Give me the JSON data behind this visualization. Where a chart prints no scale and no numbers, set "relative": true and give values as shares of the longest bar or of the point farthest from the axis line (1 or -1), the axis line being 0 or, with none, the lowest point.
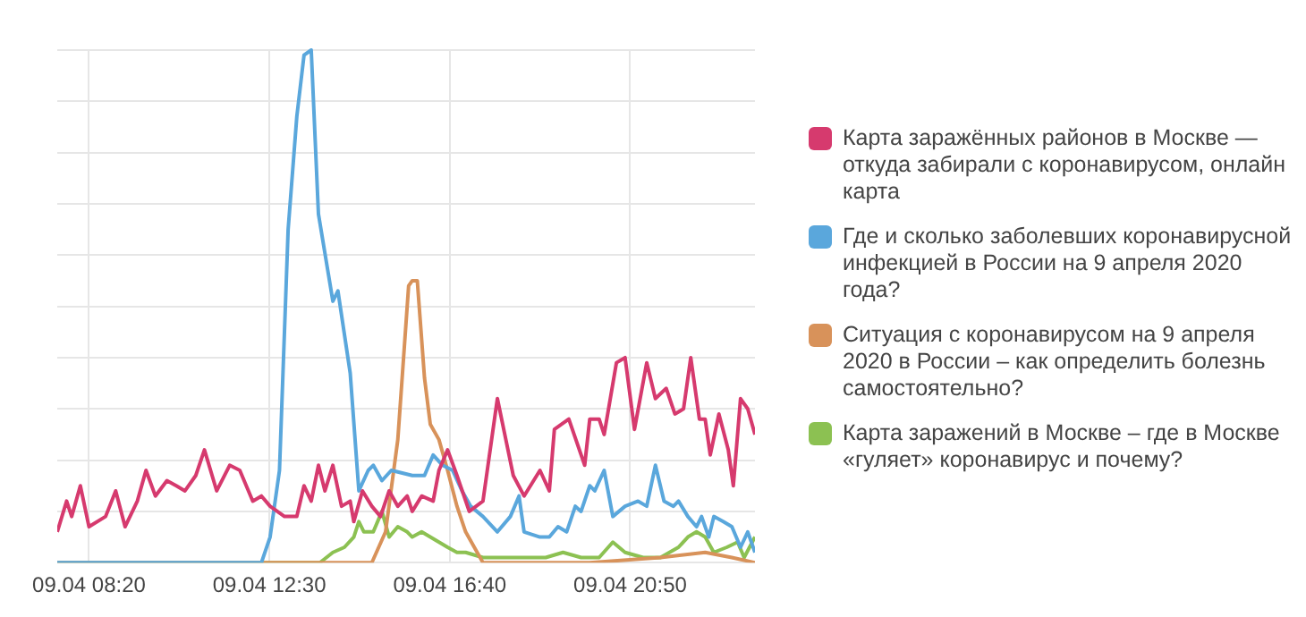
{
  "chart_data": {
    "type": "line",
    "relative": true,
    "grid": true,
    "legend": "right",
    "marker": "none",
    "xlim": [
      "2020-04-09T07:36",
      "2020-04-09T23:43"
    ],
    "xticks": [
      {
        "value": "2020-04-09T08:20",
        "label": "09.04 08:20"
      },
      {
        "value": "2020-04-09T12:30",
        "label": "09.04 12:30"
      },
      {
        "value": "2020-04-09T16:40",
        "label": "09.04 16:40"
      },
      {
        "value": "2020-04-09T20:50",
        "label": "09.04 20:50"
      }
    ],
    "series": [
      {
        "name": "Карта заражённых районов в Москве — откуда забирали с коронавирусом, онлайн карта",
        "color": "#d63a6e",
        "x": [
          "2020-04-09T07:36",
          "2020-04-09T07:49",
          "2020-04-09T07:56",
          "2020-04-09T08:08",
          "2020-04-09T08:20",
          "2020-04-09T08:43",
          "2020-04-09T08:57",
          "2020-04-09T09:10",
          "2020-04-09T09:27",
          "2020-04-09T09:39",
          "2020-04-09T09:52",
          "2020-04-09T10:08",
          "2020-04-09T10:21",
          "2020-04-09T10:33",
          "2020-04-09T10:48",
          "2020-04-09T11:00",
          "2020-04-09T11:17",
          "2020-04-09T11:35",
          "2020-04-09T11:49",
          "2020-04-09T12:07",
          "2020-04-09T12:19",
          "2020-04-09T12:31",
          "2020-04-09T12:51",
          "2020-04-09T13:08",
          "2020-04-09T13:18",
          "2020-04-09T13:28",
          "2020-04-09T13:38",
          "2020-04-09T13:47",
          "2020-04-09T13:58",
          "2020-04-09T14:10",
          "2020-04-09T14:22",
          "2020-04-09T14:27",
          "2020-04-09T14:39",
          "2020-04-09T14:52",
          "2020-04-09T15:04",
          "2020-04-09T15:16",
          "2020-04-09T15:28",
          "2020-04-09T15:41",
          "2020-04-09T15:48",
          "2020-04-09T16:01",
          "2020-04-09T16:17",
          "2020-04-09T16:25",
          "2020-04-09T16:37",
          "2020-04-09T16:50",
          "2020-04-09T17:07",
          "2020-04-09T17:26",
          "2020-04-09T17:46",
          "2020-04-09T18:08",
          "2020-04-09T18:23",
          "2020-04-09T18:45",
          "2020-04-09T18:58",
          "2020-04-09T19:05",
          "2020-04-09T19:25",
          "2020-04-09T19:47",
          "2020-04-09T19:54",
          "2020-04-09T20:07",
          "2020-04-09T20:14",
          "2020-04-09T20:31",
          "2020-04-09T20:43",
          "2020-04-09T20:56",
          "2020-04-09T21:13",
          "2020-04-09T21:25",
          "2020-04-09T21:40",
          "2020-04-09T21:52",
          "2020-04-09T22:04",
          "2020-04-09T22:14",
          "2020-04-09T22:26",
          "2020-04-09T22:34",
          "2020-04-09T22:41",
          "2020-04-09T22:53",
          "2020-04-09T23:06",
          "2020-04-09T23:13",
          "2020-04-09T23:23",
          "2020-04-09T23:33",
          "2020-04-09T23:43"
        ],
        "values": [
          0.06,
          0.12,
          0.09,
          0.15,
          0.07,
          0.09,
          0.14,
          0.07,
          0.12,
          0.18,
          0.13,
          0.16,
          0.15,
          0.14,
          0.17,
          0.22,
          0.14,
          0.19,
          0.18,
          0.12,
          0.13,
          0.11,
          0.09,
          0.09,
          0.15,
          0.12,
          0.19,
          0.14,
          0.19,
          0.11,
          0.12,
          0.08,
          0.14,
          0.11,
          0.09,
          0.14,
          0.11,
          0.13,
          0.1,
          0.13,
          0.12,
          0.18,
          0.22,
          0.17,
          0.1,
          0.12,
          0.32,
          0.17,
          0.13,
          0.18,
          0.14,
          0.26,
          0.28,
          0.19,
          0.28,
          0.28,
          0.25,
          0.39,
          0.4,
          0.26,
          0.39,
          0.32,
          0.34,
          0.29,
          0.3,
          0.4,
          0.28,
          0.28,
          0.21,
          0.29,
          0.22,
          0.15,
          0.32,
          0.3,
          0.25
        ]
      },
      {
        "name": "Где и сколько заболевших коронавирусной инфекцией в России на 9 апреля 2020 года?",
        "color": "#5aa7dc",
        "x": [
          "2020-04-09T07:36",
          "2020-04-09T12:19",
          "2020-04-09T12:31",
          "2020-04-09T12:44",
          "2020-04-09T12:56",
          "2020-04-09T13:08",
          "2020-04-09T13:18",
          "2020-04-09T13:28",
          "2020-04-09T13:38",
          "2020-04-09T13:58",
          "2020-04-09T14:05",
          "2020-04-09T14:22",
          "2020-04-09T14:34",
          "2020-04-09T14:47",
          "2020-04-09T14:54",
          "2020-04-09T15:06",
          "2020-04-09T15:19",
          "2020-04-09T15:48",
          "2020-04-09T16:05",
          "2020-04-09T16:17",
          "2020-04-09T16:30",
          "2020-04-09T16:44",
          "2020-04-09T16:57",
          "2020-04-09T17:09",
          "2020-04-09T17:26",
          "2020-04-09T17:46",
          "2020-04-09T18:04",
          "2020-04-09T18:16",
          "2020-04-09T18:23",
          "2020-04-09T18:45",
          "2020-04-09T18:58",
          "2020-04-09T19:10",
          "2020-04-09T19:22",
          "2020-04-09T19:34",
          "2020-04-09T19:42",
          "2020-04-09T19:54",
          "2020-04-09T20:01",
          "2020-04-09T20:14",
          "2020-04-09T20:26",
          "2020-04-09T20:43",
          "2020-04-09T21:01",
          "2020-04-09T21:13",
          "2020-04-09T21:25",
          "2020-04-09T21:37",
          "2020-04-09T21:50",
          "2020-04-09T21:57",
          "2020-04-09T22:10",
          "2020-04-09T22:22",
          "2020-04-09T22:29",
          "2020-04-09T22:39",
          "2020-04-09T22:46",
          "2020-04-09T22:59",
          "2020-04-09T23:11",
          "2020-04-09T23:23",
          "2020-04-09T23:33",
          "2020-04-09T23:43"
        ],
        "values": [
          0,
          0,
          0.05,
          0.18,
          0.65,
          0.87,
          0.99,
          1,
          0.68,
          0.51,
          0.53,
          0.37,
          0.14,
          0.18,
          0.19,
          0.16,
          0.18,
          0.17,
          0.17,
          0.21,
          0.19,
          0.18,
          0.14,
          0.11,
          0.09,
          0.06,
          0.09,
          0.13,
          0.06,
          0.05,
          0.05,
          0.07,
          0.06,
          0.11,
          0.1,
          0.15,
          0.14,
          0.18,
          0.09,
          0.11,
          0.12,
          0.11,
          0.19,
          0.12,
          0.11,
          0.12,
          0.09,
          0.07,
          0.09,
          0.05,
          0.09,
          0.08,
          0.07,
          0.03,
          0.06,
          0.02
        ]
      },
      {
        "name": "Ситуация с коронавирусом на 9 апреля 2020 в России – как определить болезнь самостоятельно?",
        "color": "#d8925a",
        "x": [
          "2020-04-09T07:36",
          "2020-04-09T14:52",
          "2020-04-09T15:11",
          "2020-04-09T15:28",
          "2020-04-09T15:43",
          "2020-04-09T15:48",
          "2020-04-09T15:55",
          "2020-04-09T16:05",
          "2020-04-09T16:13",
          "2020-04-09T16:25",
          "2020-04-09T16:37",
          "2020-04-09T16:50",
          "2020-04-09T17:02",
          "2020-04-09T17:14",
          "2020-04-09T17:26",
          "2020-04-09T19:54",
          "2020-04-09T21:32",
          "2020-04-09T22:34",
          "2020-04-09T23:11",
          "2020-04-09T23:43"
        ],
        "values": [
          0,
          0,
          0.06,
          0.24,
          0.54,
          0.55,
          0.55,
          0.36,
          0.27,
          0.24,
          0.18,
          0.11,
          0.06,
          0.03,
          0,
          0,
          0.01,
          0.02,
          0.01,
          0
        ]
      },
      {
        "name": "Карта заражений в Москве – где в Москве «гуляет» коронавирус и почему?",
        "color": "#8cc152",
        "x": [
          "2020-04-09T07:36",
          "2020-04-09T13:40",
          "2020-04-09T13:58",
          "2020-04-09T14:14",
          "2020-04-09T14:27",
          "2020-04-09T14:34",
          "2020-04-09T14:41",
          "2020-04-09T14:54",
          "2020-04-09T15:06",
          "2020-04-09T15:16",
          "2020-04-09T15:28",
          "2020-04-09T15:41",
          "2020-04-09T15:48",
          "2020-04-09T16:01",
          "2020-04-09T16:13",
          "2020-04-09T16:25",
          "2020-04-09T16:37",
          "2020-04-09T16:50",
          "2020-04-09T17:02",
          "2020-04-09T17:26",
          "2020-04-09T17:51",
          "2020-04-09T18:16",
          "2020-04-09T18:53",
          "2020-04-09T19:17",
          "2020-04-09T19:42",
          "2020-04-09T20:07",
          "2020-04-09T20:26",
          "2020-04-09T20:43",
          "2020-04-09T21:08",
          "2020-04-09T21:32",
          "2020-04-09T21:57",
          "2020-04-09T22:10",
          "2020-04-09T22:22",
          "2020-04-09T22:34",
          "2020-04-09T22:46",
          "2020-04-09T23:04",
          "2020-04-09T23:19",
          "2020-04-09T23:28",
          "2020-04-09T23:43"
        ],
        "values": [
          0,
          0,
          0.02,
          0.03,
          0.05,
          0.08,
          0.06,
          0.06,
          0.1,
          0.05,
          0.07,
          0.06,
          0.05,
          0.06,
          0.05,
          0.04,
          0.03,
          0.02,
          0.02,
          0.01,
          0.01,
          0.01,
          0.01,
          0.02,
          0.01,
          0.01,
          0.04,
          0.02,
          0.01,
          0.01,
          0.03,
          0.05,
          0.06,
          0.05,
          0.02,
          0.03,
          0.04,
          0.01,
          0.05
        ]
      }
    ]
  }
}
